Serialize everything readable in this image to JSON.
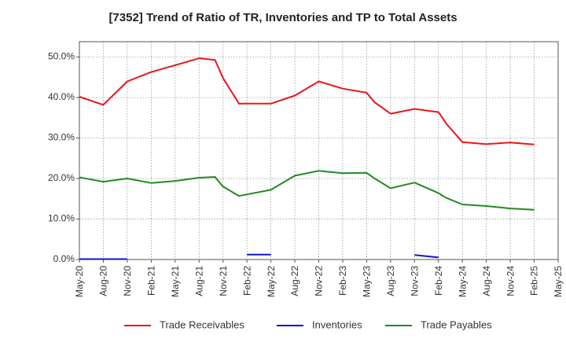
{
  "chart_data": {
    "type": "line",
    "title": "[7352]  Trend of Ratio of TR, Inventories and TP to Total Assets",
    "xlabel": "",
    "ylabel": "",
    "x_ticks": [
      "May-20",
      "Aug-20",
      "Nov-20",
      "Feb-21",
      "May-21",
      "Aug-21",
      "Nov-21",
      "Feb-22",
      "May-22",
      "Aug-22",
      "Nov-22",
      "Feb-23",
      "May-23",
      "Aug-23",
      "Nov-23",
      "Feb-24",
      "May-24",
      "Aug-24",
      "Nov-24",
      "Feb-25",
      "May-25"
    ],
    "y_ticks": [
      "0.0%",
      "10.0%",
      "20.0%",
      "30.0%",
      "40.0%",
      "50.0%"
    ],
    "ylim": [
      0,
      50
    ],
    "grid": true,
    "legend_position": "bottom",
    "series": [
      {
        "name": "Trade Receivables",
        "color": "#e8161c",
        "points": [
          [
            "May-20",
            40.2
          ],
          [
            "Aug-20",
            38.2
          ],
          [
            "Nov-20",
            44.0
          ],
          [
            "Feb-21",
            46.3
          ],
          [
            "May-21",
            48.0
          ],
          [
            "Aug-21",
            49.7
          ],
          [
            "Oct-21",
            49.3
          ],
          [
            "Nov-21",
            44.8
          ],
          [
            "Jan-22",
            38.5
          ],
          [
            "May-22",
            38.5
          ],
          [
            "Aug-22",
            40.5
          ],
          [
            "Nov-22",
            44.0
          ],
          [
            "Feb-23",
            42.2
          ],
          [
            "May-23",
            41.2
          ],
          [
            "Jun-23",
            38.8
          ],
          [
            "Aug-23",
            36.0
          ],
          [
            "Nov-23",
            37.2
          ],
          [
            "Feb-24",
            36.4
          ],
          [
            "Mar-24",
            33.5
          ],
          [
            "May-24",
            29.0
          ],
          [
            "Aug-24",
            28.5
          ],
          [
            "Nov-24",
            28.9
          ],
          [
            "Feb-25",
            28.4
          ]
        ]
      },
      {
        "name": "Inventories",
        "color": "#1414d2",
        "segments": [
          [
            [
              "May-20",
              0.1
            ],
            [
              "Nov-20",
              0.1
            ]
          ],
          [
            [
              "Feb-22",
              1.2
            ],
            [
              "May-22",
              1.2
            ]
          ],
          [
            [
              "Nov-23",
              1.1
            ],
            [
              "Feb-24",
              0.5
            ]
          ]
        ]
      },
      {
        "name": "Trade Payables",
        "color": "#228b22",
        "points": [
          [
            "May-20",
            20.3
          ],
          [
            "Aug-20",
            19.2
          ],
          [
            "Nov-20",
            20.0
          ],
          [
            "Feb-21",
            18.9
          ],
          [
            "May-21",
            19.4
          ],
          [
            "Aug-21",
            20.2
          ],
          [
            "Oct-21",
            20.4
          ],
          [
            "Nov-21",
            18.0
          ],
          [
            "Jan-22",
            15.7
          ],
          [
            "May-22",
            17.2
          ],
          [
            "Aug-22",
            20.7
          ],
          [
            "Nov-22",
            21.9
          ],
          [
            "Feb-23",
            21.3
          ],
          [
            "May-23",
            21.4
          ],
          [
            "Jun-23",
            20.0
          ],
          [
            "Aug-23",
            17.6
          ],
          [
            "Nov-23",
            19.0
          ],
          [
            "Feb-24",
            16.4
          ],
          [
            "Mar-24",
            15.2
          ],
          [
            "May-24",
            13.6
          ],
          [
            "Aug-24",
            13.2
          ],
          [
            "Nov-24",
            12.6
          ],
          [
            "Feb-25",
            12.3
          ]
        ]
      }
    ]
  }
}
